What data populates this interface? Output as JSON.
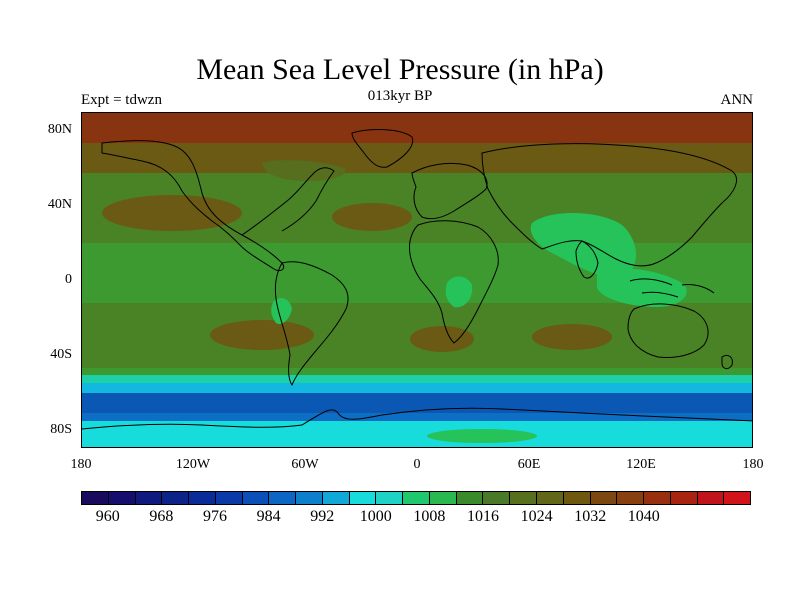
{
  "title": "Mean Sea Level Pressure (in hPa)",
  "subtitle_left": "Expt = tdwzn",
  "subtitle_center": "013kyr BP",
  "subtitle_right": "ANN",
  "lat_ticks": [
    "80N",
    "40N",
    "0",
    "40S",
    "80S"
  ],
  "lon_ticks": [
    "180",
    "120W",
    "60W",
    "0",
    "60E",
    "120E",
    "180"
  ],
  "colorbar": {
    "colors": [
      "#1a0a5e",
      "#150e6e",
      "#101a7e",
      "#0c2388",
      "#0a2c98",
      "#0a3aa8",
      "#0b4fb8",
      "#0d65c4",
      "#0d80cc",
      "#10a8d8",
      "#18dcdc",
      "#1ed2c6",
      "#1fc86e",
      "#2ab850",
      "#3a8a2a",
      "#4a7a28",
      "#56701e",
      "#626618",
      "#6e5810",
      "#7a4810",
      "#884010",
      "#983010",
      "#a82410",
      "#c0141a",
      "#d2141a"
    ],
    "labels": [
      "960",
      "968",
      "976",
      "984",
      "992",
      "1000",
      "1008",
      "1016",
      "1024",
      "1032",
      "1040"
    ]
  },
  "field_colors": {
    "high_1032": "#883410",
    "high_1028": "#7a4a10",
    "high_1024": "#6a5a14",
    "mid_1020": "#566e1e",
    "mid_1016": "#4a8226",
    "mid_1012": "#3c9a30",
    "low_1008": "#26c25a",
    "low_1004": "#1ed0a8",
    "low_1000": "#18dcdc",
    "low_996": "#12b8e0",
    "low_992": "#0f8fd2",
    "low_988": "#0d6ec4",
    "low_984": "#0b58b4"
  },
  "coastline_color": "#000000"
}
